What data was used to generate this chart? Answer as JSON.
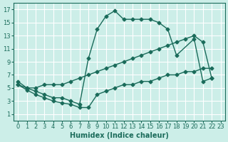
{
  "background_color": "#cceee8",
  "grid_color": "#ffffff",
  "line_color": "#1a6b5a",
  "marker_size": 2.5,
  "line_width": 1.0,
  "xlabel": "Humidex (Indice chaleur)",
  "xlabel_fontsize": 7,
  "tick_fontsize": 6,
  "xlim": [
    -0.5,
    23.5
  ],
  "ylim": [
    0,
    18
  ],
  "xticks": [
    0,
    1,
    2,
    3,
    4,
    5,
    6,
    7,
    8,
    9,
    10,
    11,
    12,
    13,
    14,
    15,
    16,
    17,
    18,
    19,
    20,
    21,
    22,
    23
  ],
  "yticks": [
    1,
    3,
    5,
    7,
    9,
    11,
    13,
    15,
    17
  ],
  "curve1_x": [
    0,
    1,
    2,
    3,
    4,
    5,
    6,
    7,
    8,
    9,
    10,
    11,
    12,
    13,
    14,
    15,
    16,
    17,
    18,
    20,
    21,
    22
  ],
  "curve1_y": [
    6,
    5,
    4.5,
    4,
    3.5,
    3.5,
    3,
    2.5,
    9.5,
    14,
    16,
    16.8,
    15.5,
    15.5,
    15.5,
    15.5,
    15,
    14,
    10,
    12.5,
    6,
    6.5
  ],
  "curve2_x": [
    0,
    1,
    2,
    3,
    4,
    5,
    6,
    7,
    8,
    9,
    10,
    11,
    12,
    13,
    14,
    15,
    16,
    17,
    18,
    19,
    20,
    21,
    22
  ],
  "curve2_y": [
    5.5,
    5,
    5,
    5.5,
    5.5,
    5.5,
    6,
    6.5,
    7,
    7.5,
    8,
    8.5,
    9,
    9.5,
    10,
    10.5,
    11,
    11.5,
    12,
    12.5,
    13,
    12,
    6.5
  ],
  "curve3_x": [
    0,
    1,
    2,
    3,
    4,
    5,
    6,
    7,
    8,
    9,
    10,
    11,
    12,
    13,
    14,
    15,
    16,
    17,
    18,
    19,
    20,
    21,
    22
  ],
  "curve3_y": [
    5.5,
    4.7,
    4,
    3.5,
    3,
    2.7,
    2.5,
    2,
    2,
    4,
    4.5,
    5,
    5.5,
    5.5,
    6,
    6,
    6.5,
    7,
    7,
    7.5,
    7.5,
    8,
    8
  ]
}
